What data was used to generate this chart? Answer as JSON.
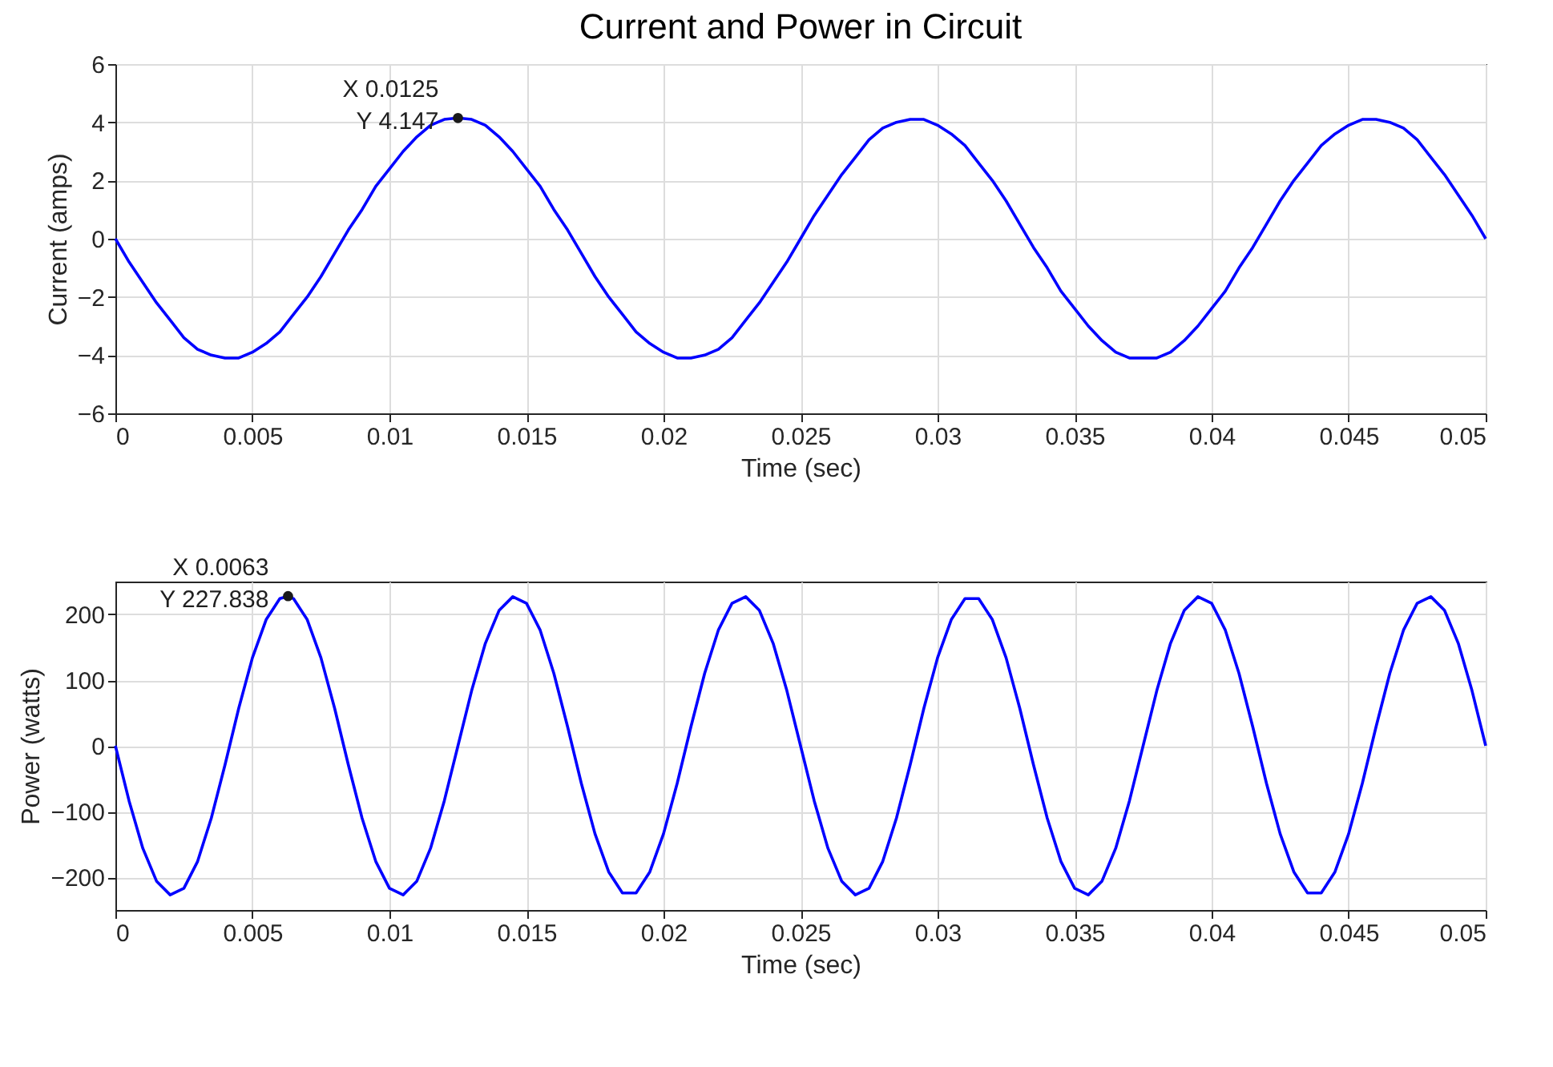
{
  "chart_data": [
    {
      "type": "line",
      "title": "Current and Power in Circuit",
      "xlabel": "Time (sec)",
      "ylabel": "Current (amps)",
      "x": [
        0,
        0.0005,
        0.001,
        0.0015,
        0.002,
        0.0025,
        0.003,
        0.0035,
        0.004,
        0.0045,
        0.005,
        0.0055,
        0.006,
        0.0065,
        0.007,
        0.0075,
        0.008,
        0.0085,
        0.009,
        0.0095,
        0.01,
        0.0105,
        0.011,
        0.0115,
        0.012,
        0.0125,
        0.013,
        0.0135,
        0.014,
        0.0145,
        0.015,
        0.0155,
        0.016,
        0.0165,
        0.017,
        0.0175,
        0.018,
        0.0185,
        0.019,
        0.0195,
        0.02,
        0.0205,
        0.021,
        0.0215,
        0.022,
        0.0225,
        0.023,
        0.0235,
        0.024,
        0.0245,
        0.025,
        0.0255,
        0.026,
        0.0265,
        0.027,
        0.0275,
        0.028,
        0.0285,
        0.029,
        0.0295,
        0.03,
        0.0305,
        0.031,
        0.0315,
        0.032,
        0.0325,
        0.033,
        0.0335,
        0.034,
        0.0345,
        0.035,
        0.0355,
        0.036,
        0.0365,
        0.037,
        0.0375,
        0.038,
        0.0385,
        0.039,
        0.0395,
        0.04,
        0.0405,
        0.041,
        0.0415,
        0.042,
        0.0425,
        0.043,
        0.0435,
        0.044,
        0.0445,
        0.045,
        0.0455,
        0.046,
        0.0465,
        0.047,
        0.0475,
        0.048,
        0.0485,
        0.049,
        0.0495,
        0.05
      ],
      "series": [
        {
          "color": "#0000ff",
          "values": [
            0,
            -0.8,
            -1.5,
            -2.2,
            -2.8,
            -3.4,
            -3.8,
            -4.0,
            -4.1,
            -4.1,
            -3.9,
            -3.6,
            -3.2,
            -2.6,
            -2.0,
            -1.3,
            -0.5,
            0.3,
            1.0,
            1.8,
            2.4,
            3.0,
            3.5,
            3.9,
            4.1,
            4.147,
            4.1,
            3.9,
            3.5,
            3.0,
            2.4,
            1.8,
            1.0,
            0.3,
            -0.5,
            -1.3,
            -2.0,
            -2.6,
            -3.2,
            -3.6,
            -3.9,
            -4.1,
            -4.1,
            -4.0,
            -3.8,
            -3.4,
            -2.8,
            -2.2,
            -1.5,
            -0.8,
            0,
            0.8,
            1.5,
            2.2,
            2.8,
            3.4,
            3.8,
            4.0,
            4.1,
            4.1,
            3.9,
            3.6,
            3.2,
            2.6,
            2.0,
            1.3,
            0.5,
            -0.3,
            -1.0,
            -1.8,
            -2.4,
            -3.0,
            -3.5,
            -3.9,
            -4.1,
            -4.1,
            -4.1,
            -3.9,
            -3.5,
            -3.0,
            -2.4,
            -1.8,
            -1.0,
            -0.3,
            0.5,
            1.3,
            2.0,
            2.6,
            3.2,
            3.6,
            3.9,
            4.1,
            4.1,
            4.0,
            3.8,
            3.4,
            2.8,
            2.2,
            1.5,
            0.8,
            0
          ]
        }
      ],
      "xlim": [
        0,
        0.05
      ],
      "xticks": [
        0,
        0.005,
        0.01,
        0.015,
        0.02,
        0.025,
        0.03,
        0.035,
        0.04,
        0.045,
        0.05
      ],
      "ylim": [
        -6,
        6
      ],
      "yticks": [
        -6,
        -4,
        -2,
        0,
        2,
        4,
        6
      ],
      "grid": true,
      "line_style": "solid",
      "annotations": [
        {
          "text": "X 0.0125\nY 4.147",
          "x": 0.0125,
          "y": 4.147
        }
      ]
    },
    {
      "type": "line",
      "xlabel": "Time (sec)",
      "ylabel": "Power (watts)",
      "x": [
        0,
        0.0005,
        0.001,
        0.0015,
        0.002,
        0.0025,
        0.003,
        0.0035,
        0.004,
        0.0045,
        0.005,
        0.0055,
        0.006,
        0.0063,
        0.0065,
        0.007,
        0.0075,
        0.008,
        0.0085,
        0.009,
        0.0095,
        0.01,
        0.0105,
        0.011,
        0.0115,
        0.012,
        0.0125,
        0.013,
        0.0135,
        0.014,
        0.0145,
        0.015,
        0.0155,
        0.016,
        0.0165,
        0.017,
        0.0175,
        0.018,
        0.0185,
        0.019,
        0.0195,
        0.02,
        0.0205,
        0.021,
        0.0215,
        0.022,
        0.0225,
        0.023,
        0.0235,
        0.024,
        0.0245,
        0.025,
        0.0255,
        0.026,
        0.0265,
        0.027,
        0.0275,
        0.028,
        0.0285,
        0.029,
        0.0295,
        0.03,
        0.0305,
        0.031,
        0.0315,
        0.032,
        0.0325,
        0.033,
        0.0335,
        0.034,
        0.0345,
        0.035,
        0.0355,
        0.036,
        0.0365,
        0.037,
        0.0375,
        0.038,
        0.0385,
        0.039,
        0.0395,
        0.04,
        0.0405,
        0.041,
        0.0415,
        0.042,
        0.0425,
        0.043,
        0.0435,
        0.044,
        0.0445,
        0.045,
        0.0455,
        0.046,
        0.0465,
        0.047,
        0.0475,
        0.048,
        0.0485,
        0.049,
        0.0495,
        0.05
      ],
      "series": [
        {
          "color": "#0000ff",
          "values": [
            0,
            -84,
            -156,
            -206,
            -227,
            -217,
            -176,
            -110,
            -29,
            57,
            134,
            192,
            224,
            227.838,
            224,
            192,
            134,
            57,
            -29,
            -110,
            -176,
            -217,
            -227,
            -206,
            -156,
            -84,
            0,
            84,
            156,
            206,
            227,
            217,
            176,
            110,
            29,
            -57,
            -134,
            -192,
            -224,
            -224,
            -192,
            -134,
            -57,
            29,
            110,
            176,
            217,
            227,
            206,
            156,
            84,
            0,
            -84,
            -156,
            -206,
            -227,
            -217,
            -176,
            -110,
            -29,
            57,
            134,
            192,
            224,
            224,
            192,
            134,
            57,
            -29,
            -110,
            -176,
            -217,
            -227,
            -206,
            -156,
            -84,
            0,
            84,
            156,
            206,
            227,
            217,
            176,
            110,
            29,
            -57,
            -134,
            -192,
            -224,
            -224,
            -192,
            -134,
            -57,
            29,
            110,
            176,
            217,
            227,
            206,
            156,
            84,
            0
          ]
        }
      ],
      "xlim": [
        0,
        0.05
      ],
      "xticks": [
        0,
        0.005,
        0.01,
        0.015,
        0.02,
        0.025,
        0.03,
        0.035,
        0.04,
        0.045,
        0.05
      ],
      "ylim": [
        -250,
        250
      ],
      "yticks": [
        -200,
        -100,
        0,
        100,
        200
      ],
      "grid": true,
      "line_style": "solid",
      "annotations": [
        {
          "text": "X 0.0063\nY 227.838",
          "x": 0.0063,
          "y": 227.838
        }
      ]
    }
  ]
}
